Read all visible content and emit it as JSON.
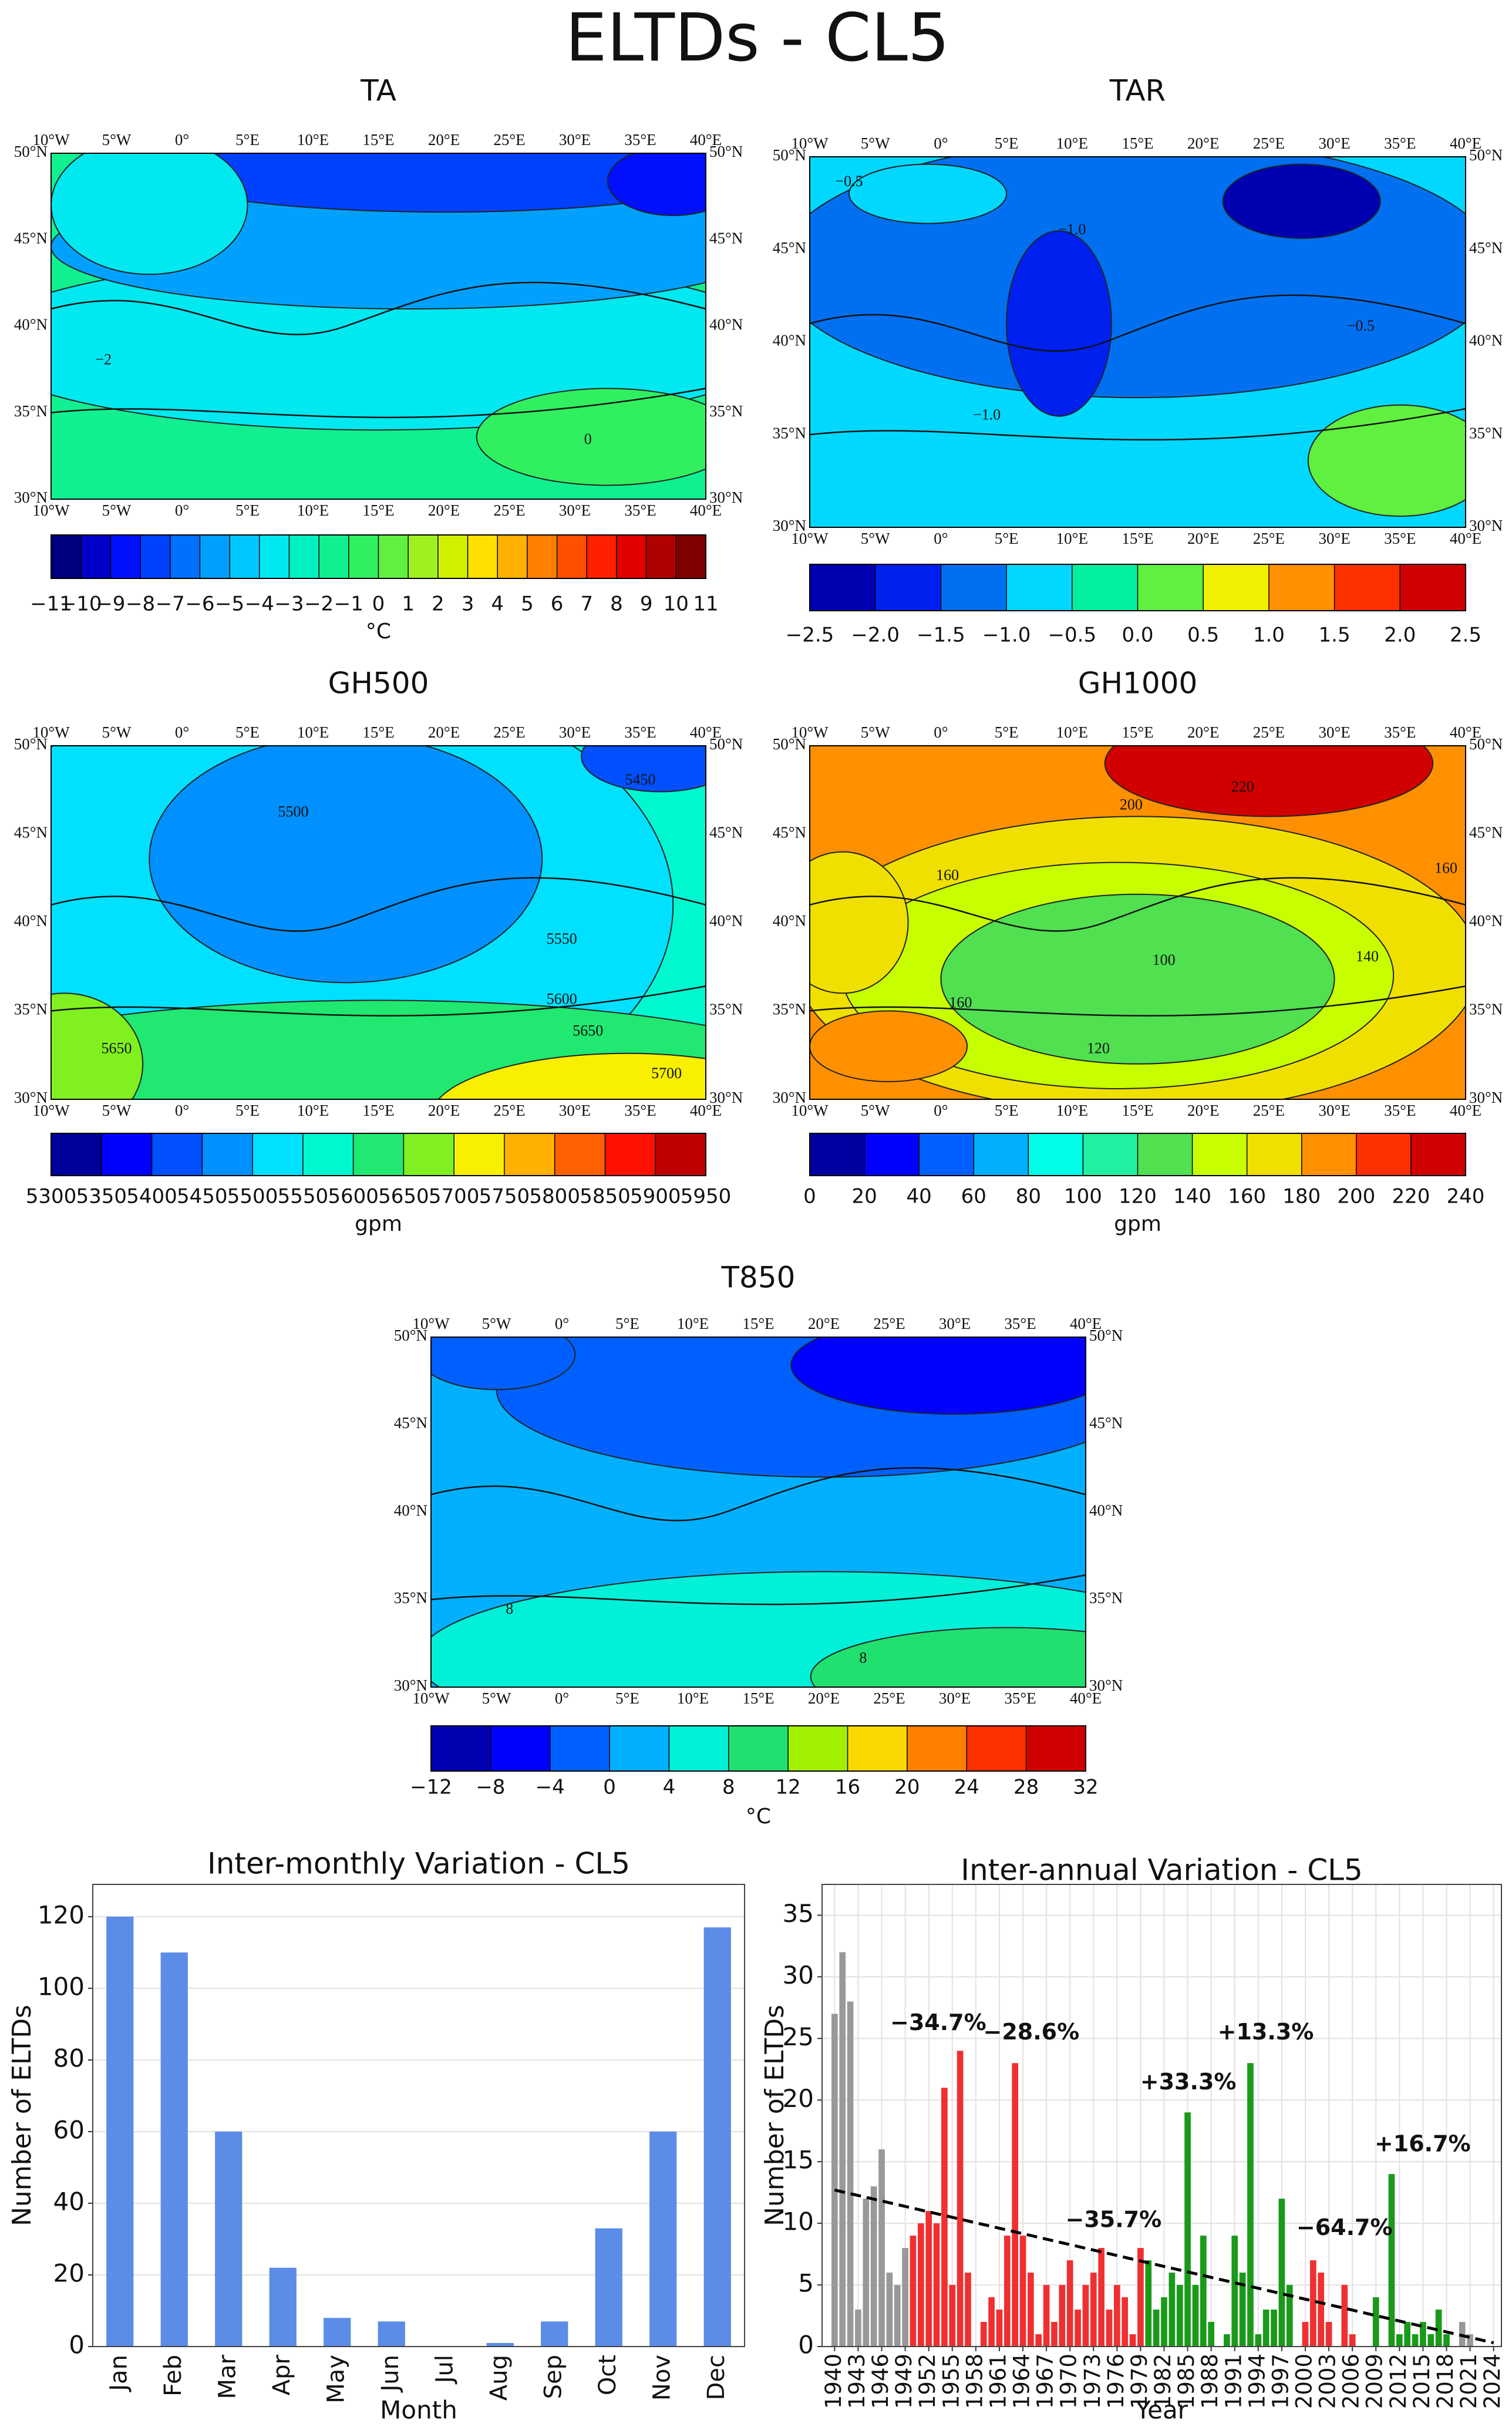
{
  "title": "ELTDs - CL5",
  "map_axes": {
    "lon_labels": [
      "10°W",
      "5°W",
      "0°",
      "5°E",
      "10°E",
      "15°E",
      "20°E",
      "25°E",
      "30°E",
      "35°E",
      "40°E"
    ],
    "lat_labels": [
      "50°N",
      "45°N",
      "40°N",
      "35°N",
      "30°N"
    ]
  },
  "maps": [
    {
      "title": "TA",
      "unit": "°C",
      "cbar_ticks": [
        {
          "value": -11,
          "label": "−11"
        },
        {
          "value": -10,
          "label": "−10"
        },
        {
          "value": -9,
          "label": "−9"
        },
        {
          "value": -8,
          "label": "−8"
        },
        {
          "value": -7,
          "label": "−7"
        },
        {
          "value": -6,
          "label": "−6"
        },
        {
          "value": -5,
          "label": "−5"
        },
        {
          "value": -4,
          "label": "−4"
        },
        {
          "value": -3,
          "label": "−3"
        },
        {
          "value": -2,
          "label": "−2"
        },
        {
          "value": -1,
          "label": "−1"
        },
        0,
        1,
        2,
        3,
        4,
        5,
        6,
        7,
        8,
        9,
        10,
        11
      ],
      "cbar_colors": [
        "#00007f",
        "#0000c8",
        "#0010ff",
        "#0040ff",
        "#0070ff",
        "#00a0ff",
        "#00c8ff",
        "#00e8f0",
        "#00f0c0",
        "#10f090",
        "#30f060",
        "#60f040",
        "#a0f020",
        "#d0f000",
        "#ffe000",
        "#ffb000",
        "#ff8000",
        "#ff5000",
        "#ff2000",
        "#e00000",
        "#b00000",
        "#800000"
      ],
      "contour_labels": [
        "−2",
        "0"
      ]
    },
    {
      "title": "TAR",
      "cbar_ticks": [
        {
          "value": -2.5,
          "label": "−2.5"
        },
        {
          "value": -2,
          "label": "−2.0"
        },
        {
          "value": -1.5,
          "label": "−1.5"
        },
        {
          "value": -1,
          "label": "−1.0"
        },
        {
          "value": -0.5,
          "label": "−0.5"
        },
        {
          "value": 0,
          "label": "0.0"
        },
        0.5,
        {
          "value": 1,
          "label": "1.0"
        },
        1.5,
        {
          "value": 2,
          "label": "2.0"
        },
        2.5
      ],
      "cbar_colors": [
        "#0000b0",
        "#0020f0",
        "#0070f0",
        "#00d8ff",
        "#00f0a0",
        "#60f040",
        "#f0f000",
        "#ff9000",
        "#ff3000",
        "#d00000"
      ],
      "contour_labels": [
        "−0.5",
        "−1.0",
        "−1.0",
        "−0.5"
      ]
    },
    {
      "title": "GH500",
      "unit": "gpm",
      "cbar_ticks": [
        5300,
        5350,
        5400,
        5450,
        5500,
        5550,
        5600,
        5650,
        5700,
        5750,
        5800,
        5850,
        5900,
        5950
      ],
      "cbar_colors": [
        "#00009a",
        "#0000ff",
        "#0050ff",
        "#0090ff",
        "#00e0ff",
        "#00f8d0",
        "#20e870",
        "#80f020",
        "#f8f000",
        "#ffb000",
        "#ff6000",
        "#ff1000",
        "#c00000"
      ],
      "contour_labels": [
        "5450",
        "5500",
        "5550",
        "5600",
        "5650",
        "5650",
        "5700"
      ]
    },
    {
      "title": "GH1000",
      "unit": "gpm",
      "cbar_ticks": [
        0,
        20,
        40,
        60,
        80,
        100,
        120,
        140,
        160,
        180,
        200,
        220,
        240
      ],
      "cbar_colors": [
        "#0000a0",
        "#0000ff",
        "#0060ff",
        "#00b0ff",
        "#00ffe8",
        "#20f0a0",
        "#50e050",
        "#c8ff00",
        "#f0e000",
        "#ff9000",
        "#ff3000",
        "#d00000"
      ],
      "contour_labels": [
        "220",
        "200",
        "160",
        "160",
        "140",
        "100",
        "160",
        "120"
      ]
    },
    {
      "title": "T850",
      "unit": "°C",
      "cbar_ticks": [
        {
          "value": -12,
          "label": "−12"
        },
        {
          "value": -8,
          "label": "−8"
        },
        {
          "value": -4,
          "label": "−4"
        },
        0,
        4,
        8,
        12,
        16,
        20,
        24,
        28,
        32
      ],
      "cbar_colors": [
        "#0000b0",
        "#0000ff",
        "#0060ff",
        "#00b0ff",
        "#00f0d8",
        "#20e070",
        "#a0f000",
        "#f8d800",
        "#ff8000",
        "#ff3000",
        "#d00000"
      ],
      "contour_labels": [
        "8",
        "8"
      ]
    }
  ],
  "chart_data": [
    {
      "type": "bar",
      "title": "Inter-monthly Variation - CL5",
      "x_label": "Month",
      "y_label": "Number of ELTDs",
      "categories": [
        "Jan",
        "Feb",
        "Mar",
        "Apr",
        "May",
        "Jun",
        "Jul",
        "Aug",
        "Sep",
        "Oct",
        "Nov",
        "Dec"
      ],
      "values": [
        120,
        110,
        60,
        22,
        8,
        7,
        0,
        1,
        7,
        33,
        60,
        117
      ],
      "color": "#5b8ce8",
      "ylim": [
        0,
        129
      ],
      "yticks": [
        0,
        20,
        40,
        60,
        80,
        100,
        120
      ],
      "grid": true
    },
    {
      "type": "bar",
      "title": "Inter-annual Variation - CL5",
      "x_label": "Year",
      "y_label": "Number of ELTDs",
      "x": [
        1940,
        1941,
        1942,
        1943,
        1944,
        1945,
        1946,
        1947,
        1948,
        1949,
        1950,
        1951,
        1952,
        1953,
        1954,
        1955,
        1956,
        1957,
        1958,
        1959,
        1960,
        1961,
        1962,
        1963,
        1964,
        1965,
        1966,
        1967,
        1968,
        1969,
        1970,
        1971,
        1972,
        1973,
        1974,
        1975,
        1976,
        1977,
        1978,
        1979,
        1980,
        1981,
        1982,
        1983,
        1984,
        1985,
        1986,
        1987,
        1988,
        1989,
        1990,
        1991,
        1992,
        1993,
        1994,
        1995,
        1996,
        1997,
        1998,
        1999,
        2000,
        2001,
        2002,
        2003,
        2004,
        2005,
        2006,
        2007,
        2008,
        2009,
        2010,
        2011,
        2012,
        2013,
        2014,
        2015,
        2016,
        2017,
        2018,
        2019,
        2020,
        2021,
        2022,
        2023,
        2024
      ],
      "values": [
        27,
        32,
        28,
        3,
        12,
        13,
        16,
        6,
        5,
        8,
        9,
        10,
        11,
        10,
        21,
        5,
        24,
        6,
        0,
        2,
        4,
        3,
        9,
        23,
        9,
        6,
        1,
        5,
        2,
        5,
        7,
        3,
        5,
        6,
        8,
        3,
        5,
        4,
        1,
        8,
        7,
        3,
        4,
        6,
        5,
        19,
        5,
        9,
        2,
        0,
        1,
        9,
        6,
        23,
        1,
        3,
        3,
        12,
        5,
        0,
        2,
        7,
        6,
        2,
        0,
        5,
        1,
        0,
        0,
        4,
        0,
        14,
        1,
        2,
        1,
        2,
        1,
        3,
        1,
        0,
        2,
        1,
        0,
        0,
        0
      ],
      "colors": [
        "#999999",
        "#999999",
        "#999999",
        "#999999",
        "#999999",
        "#999999",
        "#999999",
        "#999999",
        "#999999",
        "#999999",
        "#f03030",
        "#f03030",
        "#f03030",
        "#f03030",
        "#f03030",
        "#f03030",
        "#f03030",
        "#f03030",
        "#f03030",
        "#f03030",
        "#f03030",
        "#f03030",
        "#f03030",
        "#f03030",
        "#f03030",
        "#f03030",
        "#f03030",
        "#f03030",
        "#f03030",
        "#f03030",
        "#f03030",
        "#f03030",
        "#f03030",
        "#f03030",
        "#f03030",
        "#f03030",
        "#f03030",
        "#f03030",
        "#f03030",
        "#f03030",
        "#1a9a1a",
        "#1a9a1a",
        "#1a9a1a",
        "#1a9a1a",
        "#1a9a1a",
        "#1a9a1a",
        "#1a9a1a",
        "#1a9a1a",
        "#1a9a1a",
        "#1a9a1a",
        "#1a9a1a",
        "#1a9a1a",
        "#1a9a1a",
        "#1a9a1a",
        "#1a9a1a",
        "#1a9a1a",
        "#1a9a1a",
        "#1a9a1a",
        "#1a9a1a",
        "#1a9a1a",
        "#f03030",
        "#f03030",
        "#f03030",
        "#f03030",
        "#f03030",
        "#f03030",
        "#f03030",
        "#f03030",
        "#f03030",
        "#1a9a1a",
        "#1a9a1a",
        "#1a9a1a",
        "#1a9a1a",
        "#1a9a1a",
        "#1a9a1a",
        "#1a9a1a",
        "#1a9a1a",
        "#1a9a1a",
        "#1a9a1a",
        "#1a9a1a",
        "#999999",
        "#999999",
        "#999999",
        "#999999",
        "#999999"
      ],
      "xlim": [
        1938.4,
        2025
      ],
      "xticks": [
        1940,
        1943,
        1946,
        1949,
        1952,
        1955,
        1958,
        1961,
        1964,
        1967,
        1970,
        1973,
        1976,
        1979,
        1982,
        1985,
        1988,
        1991,
        1994,
        1997,
        2000,
        2003,
        2006,
        2009,
        2012,
        2015,
        2018,
        2021,
        2024
      ],
      "ylim": [
        0,
        37.5
      ],
      "yticks": [
        0,
        5,
        10,
        15,
        20,
        25,
        30,
        35
      ],
      "grid": true,
      "trend": {
        "x": [
          1940,
          2024
        ],
        "values": [
          12.7,
          0.3
        ]
      },
      "annotations": [
        {
          "text": "−34.7%",
          "color": "#f02020"
        },
        {
          "text": "−28.6%",
          "color": "#f02020"
        },
        {
          "text": "−35.7%",
          "color": "#f02020"
        },
        {
          "text": "+33.3%",
          "color": "#159015"
        },
        {
          "text": "+13.3%",
          "color": "#159015"
        },
        {
          "text": "−64.7%",
          "color": "#f02020"
        },
        {
          "text": "+16.7%",
          "color": "#159015"
        }
      ]
    }
  ]
}
